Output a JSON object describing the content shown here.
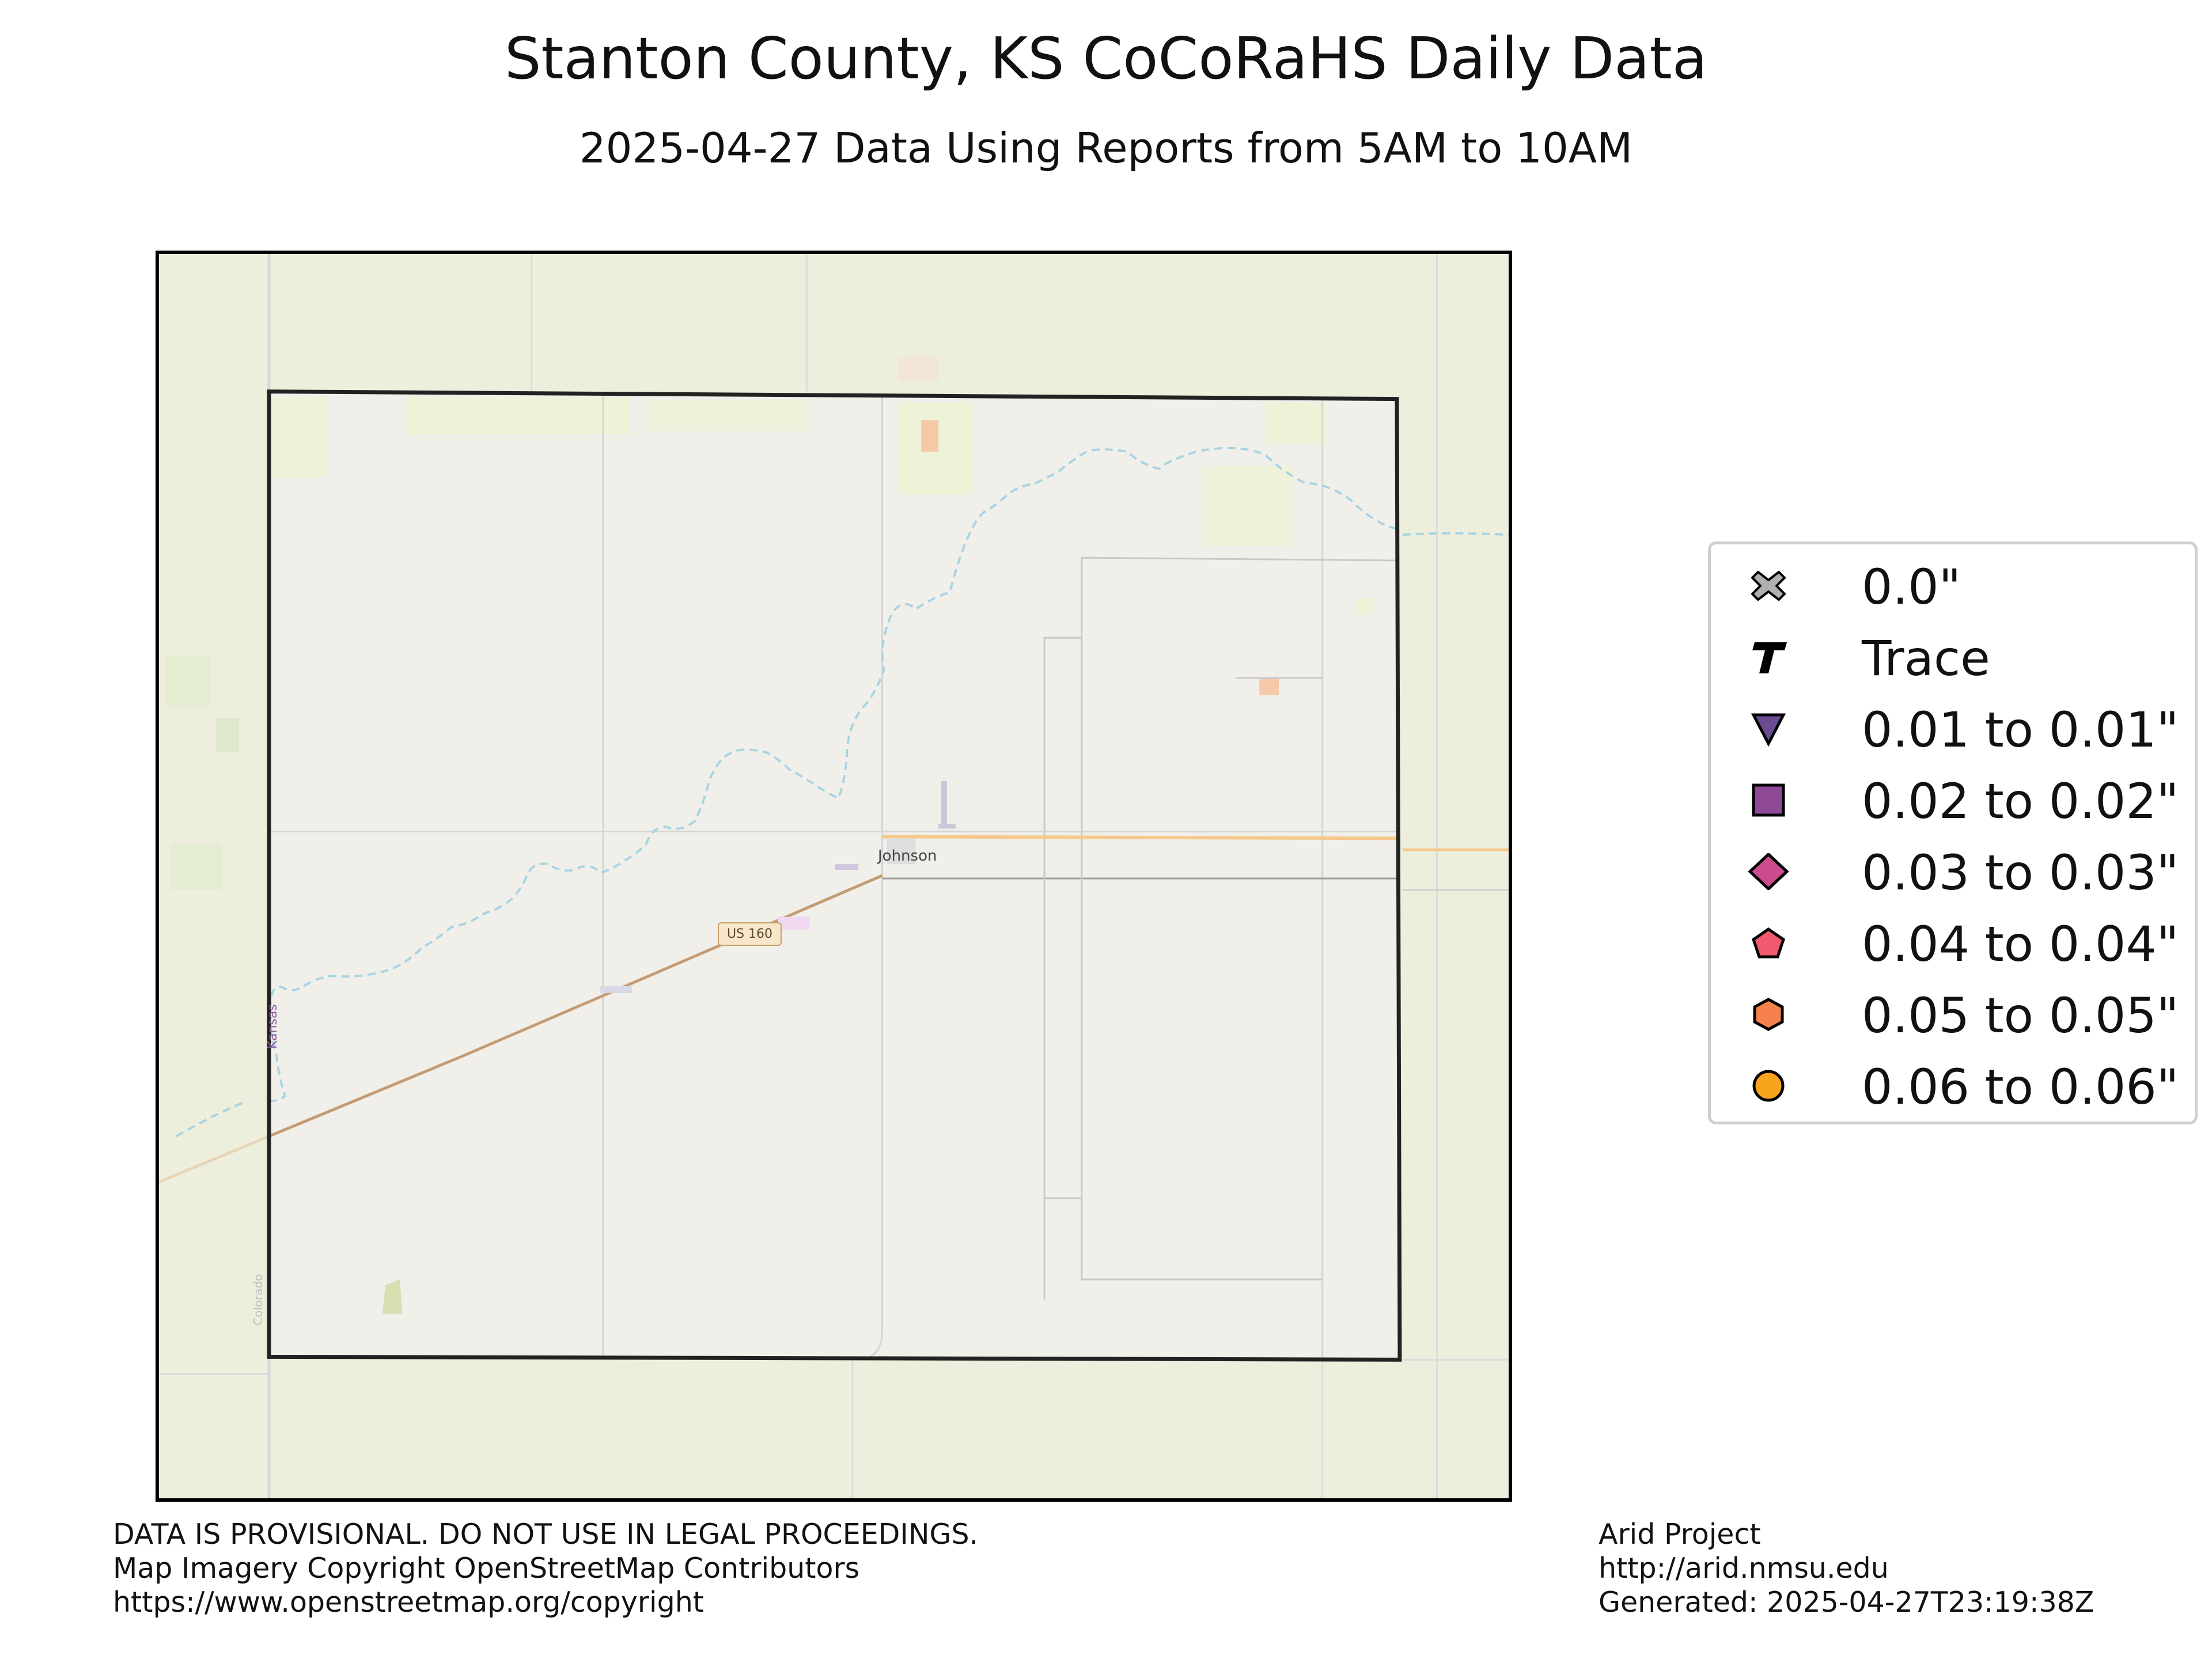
{
  "title": "Stanton County, KS CoCoRaHS Daily Data",
  "subtitle": "2025-04-27 Data Using Reports from 5AM to 10AM",
  "map": {
    "town_label": "Johnson",
    "highway_label": "US 160",
    "state_label": "Kansas",
    "river_label": "Colorado",
    "colors": {
      "county_fill": "#f1efe9",
      "outer_land": "#eeeedd",
      "county_border": "#222222",
      "river": "#a8d4e4",
      "highway": "#c49c74",
      "road_major": "#f5c98b",
      "road_minor": "#cfcfcf"
    }
  },
  "legend": {
    "items": [
      {
        "label": "0.0\"",
        "icon": "x-marker-icon",
        "color": "#b0b0b0"
      },
      {
        "label": "Trace",
        "icon": "t-marker-icon",
        "color": "#000000"
      },
      {
        "label": "0.01 to 0.01\"",
        "icon": "triangle-down-icon",
        "color": "#6a4c93"
      },
      {
        "label": "0.02 to 0.02\"",
        "icon": "square-icon",
        "color": "#8e4a96"
      },
      {
        "label": "0.03 to 0.03\"",
        "icon": "diamond-icon",
        "color": "#cc4b8e"
      },
      {
        "label": "0.04 to 0.04\"",
        "icon": "pentagon-icon",
        "color": "#ef5a6f"
      },
      {
        "label": "0.05 to 0.05\"",
        "icon": "hexagon-icon",
        "color": "#f6814c"
      },
      {
        "label": "0.06 to 0.06\"",
        "icon": "circle-icon",
        "color": "#f9a41d"
      }
    ]
  },
  "footer": {
    "left": [
      "DATA IS PROVISIONAL. DO NOT USE IN LEGAL PROCEEDINGS.",
      "Map Imagery Copyright OpenStreetMap Contributors",
      "https://www.openstreetmap.org/copyright"
    ],
    "right": [
      "Arid Project",
      "http://arid.nmsu.edu",
      "Generated: 2025-04-27T23:19:38Z"
    ]
  }
}
